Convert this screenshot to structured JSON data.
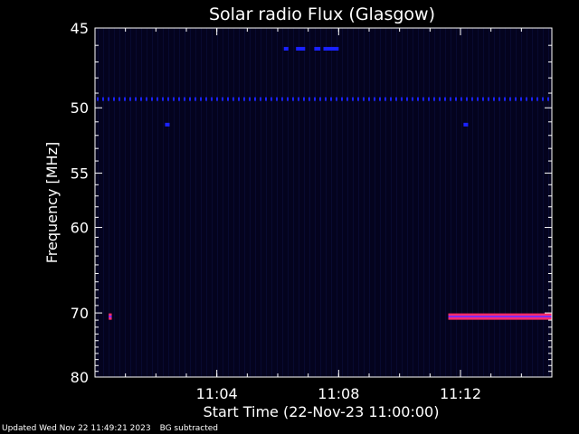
{
  "chart_data": {
    "type": "heatmap",
    "title": "Solar radio Flux (Glasgow)",
    "xlabel": "Start Time (22-Nov-23 11:00:00)",
    "ylabel": "Frequency [MHz]",
    "x_unit": "minutes after 11:00",
    "xlim": [
      0,
      15
    ],
    "ylim": [
      45,
      80
    ],
    "y_scale": "reciprocal",
    "x_ticks": [
      {
        "value": 4,
        "label": "11:04"
      },
      {
        "value": 8,
        "label": "11:08"
      },
      {
        "value": 12,
        "label": "11:12"
      }
    ],
    "y_ticks": [
      {
        "value": 45,
        "label": "45"
      },
      {
        "value": 50,
        "label": "50"
      },
      {
        "value": 55,
        "label": "55"
      },
      {
        "value": 60,
        "label": "60"
      },
      {
        "value": 70,
        "label": "70"
      },
      {
        "value": 80,
        "label": "80"
      }
    ],
    "grid": false,
    "colors": {
      "background": "#04031e",
      "weak_signal": "#1a22ff",
      "strong_signal": "#ff2a6a"
    },
    "features": [
      {
        "freq": 46.2,
        "t_start": 6.2,
        "t_end": 6.35,
        "level": "weak"
      },
      {
        "freq": 46.2,
        "t_start": 6.6,
        "t_end": 6.9,
        "level": "weak"
      },
      {
        "freq": 46.2,
        "t_start": 7.2,
        "t_end": 7.4,
        "level": "weak"
      },
      {
        "freq": 46.2,
        "t_start": 7.5,
        "t_end": 8.0,
        "level": "weak"
      },
      {
        "freq": 49.4,
        "t_start": 0.0,
        "t_end": 15.0,
        "level": "weak",
        "dotted": true
      },
      {
        "freq": 51.2,
        "t_start": 2.3,
        "t_end": 2.45,
        "level": "weak"
      },
      {
        "freq": 51.2,
        "t_start": 12.1,
        "t_end": 12.25,
        "level": "weak"
      },
      {
        "freq": 70.5,
        "t_start": 0.45,
        "t_end": 0.55,
        "level": "strong"
      },
      {
        "freq": 70.5,
        "t_start": 11.6,
        "t_end": 15.0,
        "level": "strong"
      }
    ]
  },
  "footer": {
    "updated": "Updated Wed Nov 22 11:49:21 2023",
    "note": "BG subtracted"
  }
}
